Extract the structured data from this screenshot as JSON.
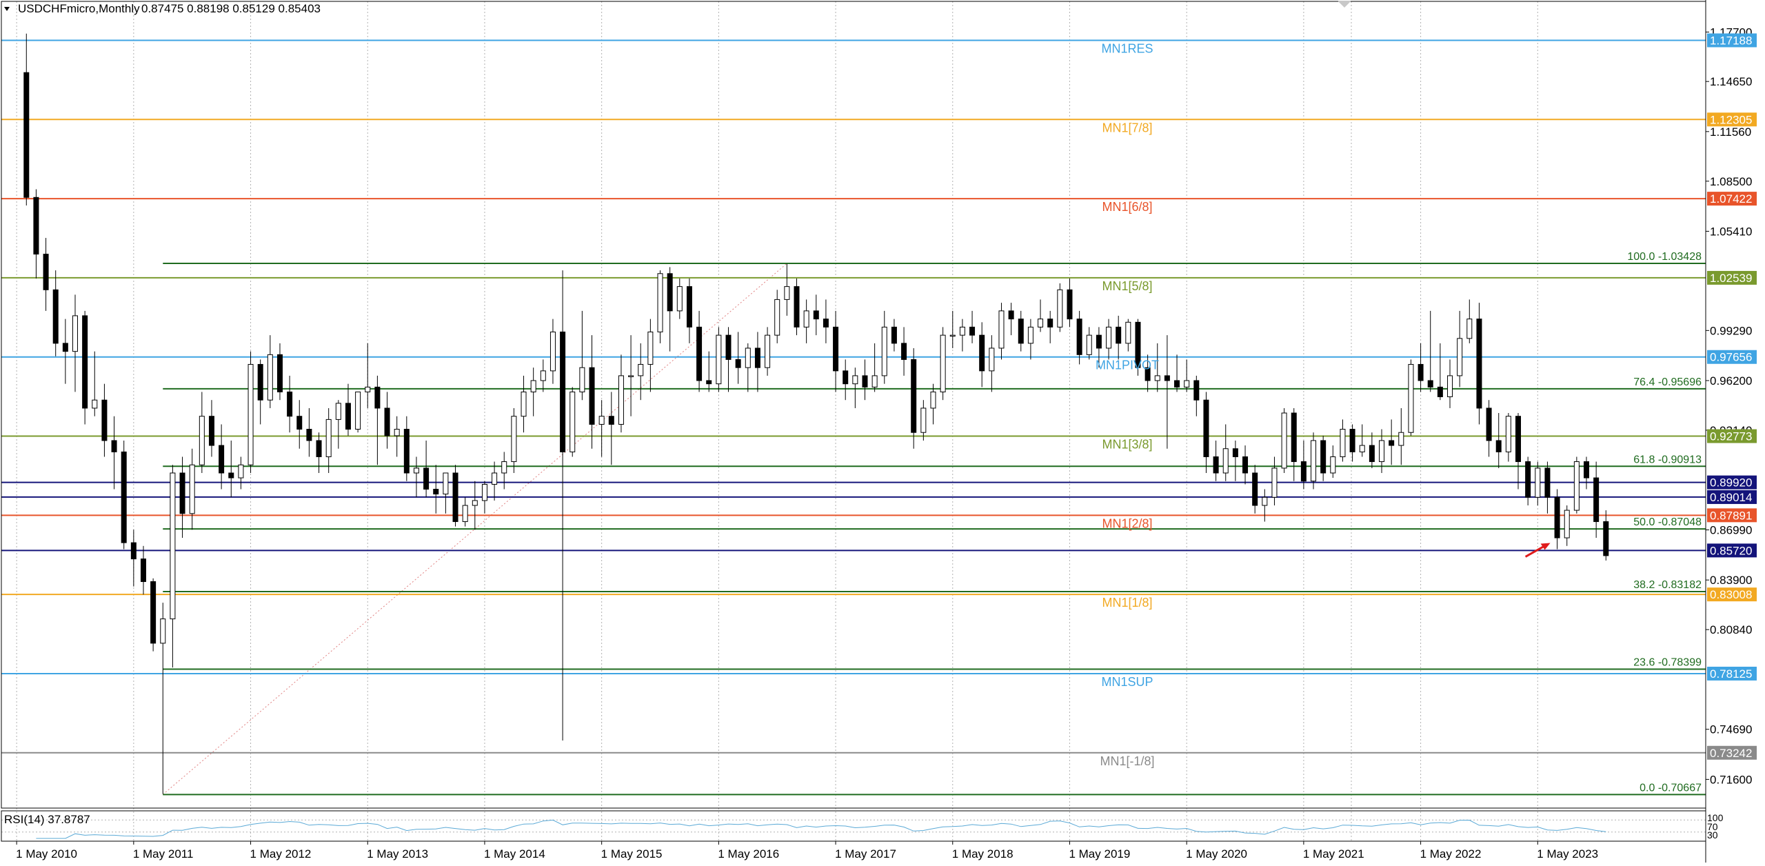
{
  "header": {
    "symbol": "USDCHFmicro,Monthly",
    "ohlc": "0.87475 0.88198 0.85129 0.85403"
  },
  "indicator": {
    "label": "RSI(14) 37.8787",
    "scale_labels": [
      "100",
      "70",
      "30"
    ]
  },
  "colors": {
    "bull_candle": "#ffffff",
    "bear_candle": "#000000",
    "grid": "#b0b0b0",
    "mn1_blue": "#3fa4e3",
    "mn1_orange_yellow": "#f2a922",
    "mn1_red_orange": "#e8542a",
    "mn1_olive": "#7a9a2e",
    "fib_green": "#1f6b1f",
    "navy": "#14147a",
    "gray": "#8a8a8a",
    "arrow": "#e01b1b"
  },
  "chart_data": {
    "type": "candlestick",
    "timeframe": "Monthly",
    "symbol": "USDCHFmicro",
    "ylim": [
      0.7,
      1.184
    ],
    "y_ticks": [
      "1.17700",
      "1.14650",
      "1.11560",
      "1.08500",
      "1.05410",
      "0.99290",
      "0.96200",
      "0.93140",
      "0.86990",
      "0.83900",
      "0.80840",
      "0.74690",
      "0.71600"
    ],
    "x_range": [
      "2010-04",
      "2024-05"
    ],
    "x_ticks": [
      {
        "label": "1 May 2010",
        "date": "2010-05"
      },
      {
        "label": "1 May 2011",
        "date": "2011-05"
      },
      {
        "label": "1 May 2012",
        "date": "2012-05"
      },
      {
        "label": "1 May 2013",
        "date": "2013-05"
      },
      {
        "label": "1 May 2014",
        "date": "2014-05"
      },
      {
        "label": "1 May 2015",
        "date": "2015-05"
      },
      {
        "label": "1 May 2016",
        "date": "2016-05"
      },
      {
        "label": "1 May 2017",
        "date": "2017-05"
      },
      {
        "label": "1 May 2018",
        "date": "2018-05"
      },
      {
        "label": "1 May 2019",
        "date": "2019-05"
      },
      {
        "label": "1 May 2020",
        "date": "2020-05"
      },
      {
        "label": "1 May 2021",
        "date": "2021-05"
      },
      {
        "label": "1 May 2022",
        "date": "2022-05"
      },
      {
        "label": "1 May 2023",
        "date": "2023-05"
      }
    ],
    "levels": [
      {
        "name": "MN1RES",
        "value": 1.17188,
        "price": "1.17188",
        "color": "#3fa4e3"
      },
      {
        "name": "MN1[7/8]",
        "value": 1.12305,
        "price": "1.12305",
        "color": "#f2a922"
      },
      {
        "name": "MN1[6/8]",
        "value": 1.07422,
        "price": "1.07422",
        "color": "#e8542a"
      },
      {
        "name": "MN1[5/8]",
        "value": 1.02539,
        "price": "1.02539",
        "color": "#7a9a2e"
      },
      {
        "name": "MN1PIVOT",
        "value": 0.97656,
        "price": "0.97656",
        "color": "#3fa4e3"
      },
      {
        "name": "MN1[3/8]",
        "value": 0.92773,
        "price": "0.92773",
        "color": "#7a9a2e"
      },
      {
        "name": "",
        "value": 0.8992,
        "price": "0.89920",
        "color": "#14147a"
      },
      {
        "name": "",
        "value": 0.89014,
        "price": "0.89014",
        "color": "#14147a"
      },
      {
        "name": "MN1[2/8]",
        "value": 0.87891,
        "price": "0.87891",
        "color": "#e8542a"
      },
      {
        "name": "",
        "value": 0.8572,
        "price": "0.85720",
        "color": "#14147a"
      },
      {
        "name": "MN1[1/8]",
        "value": 0.83008,
        "price": "0.83008",
        "color": "#f2a922"
      },
      {
        "name": "MN1SUP",
        "value": 0.78125,
        "price": "0.78125",
        "color": "#3fa4e3"
      },
      {
        "name": "MN1[-1/8]",
        "value": 0.73242,
        "price": "0.73242",
        "color": "#8a8a8a"
      }
    ],
    "fibonacci": [
      {
        "label": "100.0 -1.03428",
        "value": 1.03428
      },
      {
        "label": "76.4 -0.95696",
        "value": 0.95696
      },
      {
        "label": "61.8 -0.90913",
        "value": 0.90913
      },
      {
        "label": "50.0 -0.87048",
        "value": 0.87048
      },
      {
        "label": "38.2 -0.83182",
        "value": 0.83182
      },
      {
        "label": "23.6 -0.78399",
        "value": 0.78399
      },
      {
        "label": "0.0 -0.70667",
        "value": 0.70667
      }
    ],
    "fib_trend": {
      "from": {
        "date": "2011-08",
        "price": 0.70667
      },
      "to": {
        "date": "2016-12",
        "price": 1.03428
      }
    },
    "marker_arrow": {
      "date": "2023-07",
      "price": 0.8695
    },
    "candles": [
      [
        "2010-06",
        1.152,
        1.176,
        1.07,
        1.075
      ],
      [
        "2010-07",
        1.075,
        1.08,
        1.025,
        1.04
      ],
      [
        "2010-08",
        1.04,
        1.05,
        1.005,
        1.018
      ],
      [
        "2010-09",
        1.018,
        1.03,
        0.977,
        0.985
      ],
      [
        "2010-10",
        0.985,
        1.0,
        0.96,
        0.98
      ],
      [
        "2010-11",
        0.98,
        1.015,
        0.955,
        1.002
      ],
      [
        "2010-12",
        1.002,
        1.005,
        0.935,
        0.945
      ],
      [
        "2011-01",
        0.945,
        0.98,
        0.94,
        0.95
      ],
      [
        "2011-02",
        0.95,
        0.96,
        0.915,
        0.925
      ],
      [
        "2011-03",
        0.925,
        0.94,
        0.895,
        0.918
      ],
      [
        "2011-04",
        0.918,
        0.925,
        0.858,
        0.862
      ],
      [
        "2011-05",
        0.862,
        0.87,
        0.835,
        0.852
      ],
      [
        "2011-06",
        0.852,
        0.86,
        0.83,
        0.838
      ],
      [
        "2011-07",
        0.838,
        0.84,
        0.795,
        0.8
      ],
      [
        "2011-08",
        0.8,
        0.825,
        0.707,
        0.815
      ],
      [
        "2011-09",
        0.815,
        0.91,
        0.785,
        0.905
      ],
      [
        "2011-10",
        0.905,
        0.915,
        0.865,
        0.88
      ],
      [
        "2011-11",
        0.88,
        0.92,
        0.87,
        0.91
      ],
      [
        "2011-12",
        0.91,
        0.955,
        0.905,
        0.94
      ],
      [
        "2012-01",
        0.94,
        0.95,
        0.915,
        0.922
      ],
      [
        "2012-02",
        0.922,
        0.935,
        0.895,
        0.905
      ],
      [
        "2012-03",
        0.905,
        0.925,
        0.89,
        0.902
      ],
      [
        "2012-04",
        0.902,
        0.915,
        0.895,
        0.91
      ],
      [
        "2012-05",
        0.91,
        0.98,
        0.905,
        0.972
      ],
      [
        "2012-06",
        0.972,
        0.975,
        0.935,
        0.95
      ],
      [
        "2012-07",
        0.95,
        0.99,
        0.945,
        0.978
      ],
      [
        "2012-08",
        0.978,
        0.985,
        0.95,
        0.955
      ],
      [
        "2012-09",
        0.955,
        0.965,
        0.93,
        0.94
      ],
      [
        "2012-10",
        0.94,
        0.95,
        0.92,
        0.932
      ],
      [
        "2012-11",
        0.932,
        0.945,
        0.915,
        0.925
      ],
      [
        "2012-12",
        0.925,
        0.93,
        0.905,
        0.915
      ],
      [
        "2013-01",
        0.915,
        0.945,
        0.905,
        0.938
      ],
      [
        "2013-02",
        0.938,
        0.95,
        0.92,
        0.948
      ],
      [
        "2013-03",
        0.948,
        0.96,
        0.928,
        0.932
      ],
      [
        "2013-04",
        0.932,
        0.955,
        0.93,
        0.955
      ],
      [
        "2013-05",
        0.955,
        0.985,
        0.945,
        0.958
      ],
      [
        "2013-06",
        0.958,
        0.965,
        0.91,
        0.945
      ],
      [
        "2013-07",
        0.945,
        0.955,
        0.92,
        0.928
      ],
      [
        "2013-08",
        0.928,
        0.94,
        0.915,
        0.932
      ],
      [
        "2013-09",
        0.932,
        0.94,
        0.9,
        0.905
      ],
      [
        "2013-10",
        0.905,
        0.915,
        0.89,
        0.908
      ],
      [
        "2013-11",
        0.908,
        0.925,
        0.89,
        0.895
      ],
      [
        "2013-12",
        0.895,
        0.91,
        0.88,
        0.892
      ],
      [
        "2014-01",
        0.892,
        0.905,
        0.88,
        0.905
      ],
      [
        "2014-02",
        0.905,
        0.91,
        0.872,
        0.875
      ],
      [
        "2014-03",
        0.875,
        0.89,
        0.872,
        0.885
      ],
      [
        "2014-04",
        0.885,
        0.9,
        0.87,
        0.888
      ],
      [
        "2014-05",
        0.888,
        0.9,
        0.88,
        0.898
      ],
      [
        "2014-06",
        0.898,
        0.912,
        0.888,
        0.905
      ],
      [
        "2014-07",
        0.905,
        0.918,
        0.895,
        0.912
      ],
      [
        "2014-08",
        0.912,
        0.945,
        0.905,
        0.94
      ],
      [
        "2014-09",
        0.94,
        0.965,
        0.93,
        0.955
      ],
      [
        "2014-10",
        0.955,
        0.97,
        0.94,
        0.962
      ],
      [
        "2014-11",
        0.962,
        0.975,
        0.955,
        0.968
      ],
      [
        "2014-12",
        0.968,
        1.0,
        0.96,
        0.992
      ],
      [
        "2015-01",
        0.992,
        1.03,
        0.74,
        0.918
      ],
      [
        "2015-02",
        0.918,
        0.958,
        0.915,
        0.955
      ],
      [
        "2015-03",
        0.955,
        1.005,
        0.95,
        0.97
      ],
      [
        "2015-04",
        0.97,
        0.99,
        0.92,
        0.935
      ],
      [
        "2015-05",
        0.935,
        0.95,
        0.915,
        0.94
      ],
      [
        "2015-06",
        0.94,
        0.955,
        0.91,
        0.935
      ],
      [
        "2015-07",
        0.935,
        0.978,
        0.93,
        0.965
      ],
      [
        "2015-08",
        0.965,
        0.99,
        0.94,
        0.965
      ],
      [
        "2015-09",
        0.965,
        0.985,
        0.95,
        0.972
      ],
      [
        "2015-10",
        0.972,
        1.0,
        0.955,
        0.992
      ],
      [
        "2015-11",
        0.992,
        1.03,
        0.985,
        1.028
      ],
      [
        "2015-12",
        1.028,
        1.032,
        0.98,
        1.005
      ],
      [
        "2016-01",
        1.005,
        1.025,
        1.0,
        1.02
      ],
      [
        "2016-02",
        1.02,
        1.025,
        0.985,
        0.995
      ],
      [
        "2016-03",
        0.995,
        1.005,
        0.955,
        0.962
      ],
      [
        "2016-04",
        0.962,
        0.98,
        0.955,
        0.96
      ],
      [
        "2016-05",
        0.96,
        0.995,
        0.955,
        0.99
      ],
      [
        "2016-06",
        0.99,
        0.995,
        0.955,
        0.975
      ],
      [
        "2016-07",
        0.975,
        0.992,
        0.96,
        0.97
      ],
      [
        "2016-08",
        0.97,
        0.985,
        0.955,
        0.982
      ],
      [
        "2016-09",
        0.982,
        0.992,
        0.955,
        0.97
      ],
      [
        "2016-10",
        0.97,
        0.995,
        0.965,
        0.99
      ],
      [
        "2016-11",
        0.99,
        1.018,
        0.985,
        1.012
      ],
      [
        "2016-12",
        1.012,
        1.034,
        1.002,
        1.02
      ],
      [
        "2017-01",
        1.02,
        1.025,
        0.99,
        0.995
      ],
      [
        "2017-02",
        0.995,
        1.012,
        0.985,
        1.005
      ],
      [
        "2017-03",
        1.005,
        1.015,
        0.99,
        1.0
      ],
      [
        "2017-04",
        1.0,
        1.012,
        0.985,
        0.995
      ],
      [
        "2017-05",
        0.995,
        1.005,
        0.955,
        0.968
      ],
      [
        "2017-06",
        0.968,
        0.975,
        0.95,
        0.96
      ],
      [
        "2017-07",
        0.96,
        0.97,
        0.945,
        0.965
      ],
      [
        "2017-08",
        0.965,
        0.975,
        0.95,
        0.958
      ],
      [
        "2017-09",
        0.958,
        0.985,
        0.955,
        0.965
      ],
      [
        "2017-10",
        0.965,
        1.005,
        0.96,
        0.995
      ],
      [
        "2017-11",
        0.995,
        1.0,
        0.98,
        0.985
      ],
      [
        "2017-12",
        0.985,
        0.995,
        0.965,
        0.975
      ],
      [
        "2018-01",
        0.975,
        0.982,
        0.92,
        0.93
      ],
      [
        "2018-02",
        0.93,
        0.95,
        0.925,
        0.945
      ],
      [
        "2018-03",
        0.945,
        0.96,
        0.935,
        0.955
      ],
      [
        "2018-04",
        0.955,
        0.995,
        0.95,
        0.99
      ],
      [
        "2018-05",
        0.99,
        1.005,
        0.982,
        0.99
      ],
      [
        "2018-06",
        0.99,
        1.0,
        0.98,
        0.995
      ],
      [
        "2018-07",
        0.995,
        1.005,
        0.985,
        0.99
      ],
      [
        "2018-08",
        0.99,
        0.998,
        0.958,
        0.968
      ],
      [
        "2018-09",
        0.968,
        0.99,
        0.955,
        0.982
      ],
      [
        "2018-10",
        0.982,
        1.01,
        0.975,
        1.005
      ],
      [
        "2018-11",
        1.005,
        1.01,
        0.99,
        1.0
      ],
      [
        "2018-12",
        1.0,
        1.005,
        0.98,
        0.985
      ],
      [
        "2019-01",
        0.985,
        1.0,
        0.975,
        0.995
      ],
      [
        "2019-02",
        0.995,
        1.012,
        0.992,
        1.0
      ],
      [
        "2019-03",
        1.0,
        1.005,
        0.985,
        0.995
      ],
      [
        "2019-04",
        0.995,
        1.022,
        0.992,
        1.018
      ],
      [
        "2019-05",
        1.018,
        1.025,
        0.995,
        1.0
      ],
      [
        "2019-06",
        1.0,
        1.005,
        0.972,
        0.978
      ],
      [
        "2019-07",
        0.978,
        0.995,
        0.975,
        0.99
      ],
      [
        "2019-08",
        0.99,
        0.995,
        0.97,
        0.982
      ],
      [
        "2019-09",
        0.982,
        1.0,
        0.975,
        0.995
      ],
      [
        "2019-10",
        0.995,
        1.002,
        0.975,
        0.985
      ],
      [
        "2019-11",
        0.985,
        1.0,
        0.98,
        0.998
      ],
      [
        "2019-12",
        0.998,
        1.0,
        0.965,
        0.97
      ],
      [
        "2020-01",
        0.97,
        0.978,
        0.955,
        0.962
      ],
      [
        "2020-02",
        0.962,
        0.985,
        0.955,
        0.965
      ],
      [
        "2020-03",
        0.965,
        0.99,
        0.92,
        0.962
      ],
      [
        "2020-04",
        0.962,
        0.978,
        0.955,
        0.958
      ],
      [
        "2020-05",
        0.958,
        0.975,
        0.955,
        0.962
      ],
      [
        "2020-06",
        0.962,
        0.965,
        0.94,
        0.95
      ],
      [
        "2020-07",
        0.95,
        0.955,
        0.905,
        0.915
      ],
      [
        "2020-08",
        0.915,
        0.925,
        0.9,
        0.905
      ],
      [
        "2020-09",
        0.905,
        0.935,
        0.9,
        0.92
      ],
      [
        "2020-10",
        0.92,
        0.925,
        0.9,
        0.915
      ],
      [
        "2020-11",
        0.915,
        0.922,
        0.898,
        0.905
      ],
      [
        "2020-12",
        0.905,
        0.91,
        0.88,
        0.885
      ],
      [
        "2021-01",
        0.885,
        0.895,
        0.875,
        0.89
      ],
      [
        "2021-02",
        0.89,
        0.915,
        0.885,
        0.908
      ],
      [
        "2021-03",
        0.908,
        0.945,
        0.905,
        0.942
      ],
      [
        "2021-04",
        0.942,
        0.945,
        0.9,
        0.912
      ],
      [
        "2021-05",
        0.912,
        0.925,
        0.895,
        0.9
      ],
      [
        "2021-06",
        0.9,
        0.93,
        0.895,
        0.925
      ],
      [
        "2021-07",
        0.925,
        0.928,
        0.9,
        0.905
      ],
      [
        "2021-08",
        0.905,
        0.922,
        0.902,
        0.915
      ],
      [
        "2021-09",
        0.915,
        0.938,
        0.912,
        0.932
      ],
      [
        "2021-10",
        0.932,
        0.935,
        0.912,
        0.918
      ],
      [
        "2021-11",
        0.918,
        0.935,
        0.915,
        0.922
      ],
      [
        "2021-12",
        0.922,
        0.93,
        0.908,
        0.912
      ],
      [
        "2022-01",
        0.912,
        0.932,
        0.905,
        0.925
      ],
      [
        "2022-02",
        0.925,
        0.938,
        0.91,
        0.922
      ],
      [
        "2022-03",
        0.922,
        0.945,
        0.91,
        0.93
      ],
      [
        "2022-04",
        0.93,
        0.975,
        0.928,
        0.972
      ],
      [
        "2022-05",
        0.972,
        0.985,
        0.955,
        0.962
      ],
      [
        "2022-06",
        0.962,
        1.005,
        0.955,
        0.958
      ],
      [
        "2022-07",
        0.958,
        0.985,
        0.95,
        0.952
      ],
      [
        "2022-08",
        0.952,
        0.975,
        0.945,
        0.965
      ],
      [
        "2022-09",
        0.965,
        1.005,
        0.958,
        0.988
      ],
      [
        "2022-10",
        0.988,
        1.012,
        0.985,
        1.0
      ],
      [
        "2022-11",
        1.0,
        1.01,
        0.935,
        0.945
      ],
      [
        "2022-12",
        0.945,
        0.95,
        0.915,
        0.925
      ],
      [
        "2023-01",
        0.925,
        0.942,
        0.908,
        0.918
      ],
      [
        "2023-02",
        0.918,
        0.942,
        0.912,
        0.94
      ],
      [
        "2023-03",
        0.94,
        0.942,
        0.895,
        0.912
      ],
      [
        "2023-04",
        0.912,
        0.915,
        0.885,
        0.89
      ],
      [
        "2023-05",
        0.89,
        0.912,
        0.885,
        0.908
      ],
      [
        "2023-06",
        0.908,
        0.912,
        0.88,
        0.89
      ],
      [
        "2023-07",
        0.89,
        0.895,
        0.858,
        0.865
      ],
      [
        "2023-08",
        0.865,
        0.885,
        0.86,
        0.882
      ],
      [
        "2023-09",
        0.882,
        0.915,
        0.88,
        0.912
      ],
      [
        "2023-10",
        0.912,
        0.915,
        0.895,
        0.902
      ],
      [
        "2023-11",
        0.902,
        0.912,
        0.865,
        0.875
      ],
      [
        "2023-12",
        0.875,
        0.882,
        0.851,
        0.854
      ]
    ]
  }
}
